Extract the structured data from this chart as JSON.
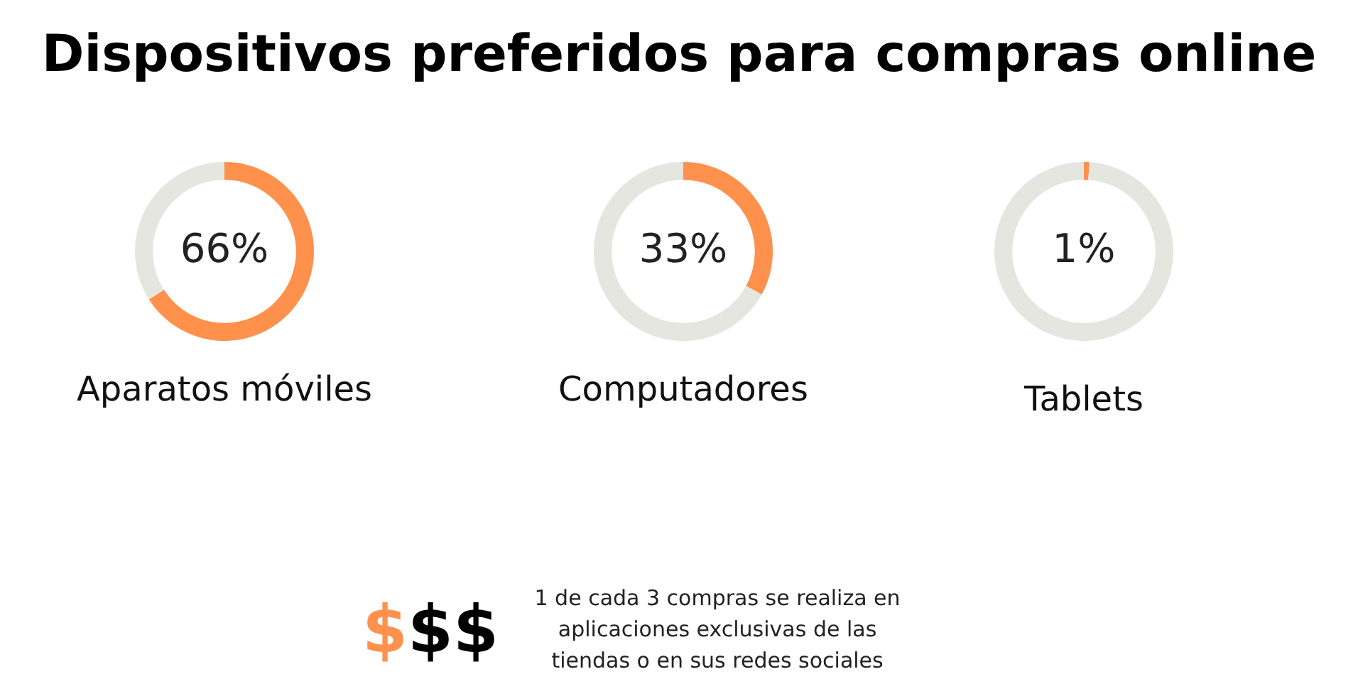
{
  "chart_data": [
    {
      "type": "donut",
      "title": "Aparatos móviles",
      "categories": [
        null,
        null
      ],
      "values": [
        66,
        34
      ],
      "colors": [
        "#ff914d",
        "#e6e6e1"
      ],
      "value_labels": [
        "66%",
        null
      ]
    },
    {
      "type": "donut",
      "title": "Computadores",
      "categories": [
        null,
        null
      ],
      "values": [
        33,
        67
      ],
      "colors": [
        "#ff914d",
        "#e6e6e1"
      ],
      "value_labels": [
        "33%",
        null
      ]
    },
    {
      "type": "donut",
      "title": "Tablets",
      "categories": [
        null,
        null
      ],
      "values": [
        1,
        99
      ],
      "colors": [
        "#ff914d",
        "#e6e6e1"
      ],
      "value_labels": [
        "1%",
        null
      ]
    },
    {
      "type": "other",
      "title": "Dispositivos preferidos para compras online",
      "annotations": [
        "$$$",
        "1 de cada 3 compras se realiza en aplicaciones exclusivas de las tiendas o en sus redes sociales"
      ]
    }
  ]
}
